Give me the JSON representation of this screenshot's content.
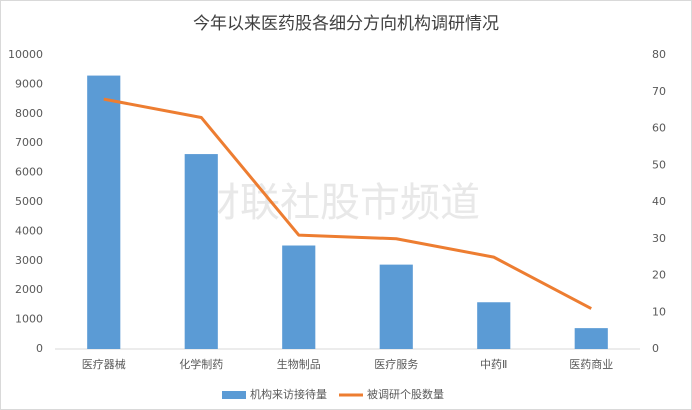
{
  "chart_data": {
    "type": "bar",
    "title": "今年以来医药股各细分方向机构调研情况",
    "watermark": "财联社股市频道",
    "categories": [
      "医疗器械",
      "化学制药",
      "生物制品",
      "医疗服务",
      "中药Ⅱ",
      "医药商业"
    ],
    "series": [
      {
        "name": "机构来访接待量",
        "type": "bar",
        "color": "#5b9bd5",
        "values": [
          9300,
          6630,
          3520,
          2870,
          1590,
          710
        ]
      },
      {
        "name": "被调研个股数量",
        "type": "line",
        "axis": "y2",
        "color": "#ed7d31",
        "values": [
          68,
          63,
          31,
          30,
          25,
          11
        ]
      }
    ],
    "ylim": [
      0,
      10000
    ],
    "yticks": [
      0,
      1000,
      2000,
      3000,
      4000,
      5000,
      6000,
      7000,
      8000,
      9000,
      10000
    ],
    "y2lim": [
      0,
      80
    ],
    "y2ticks": [
      0,
      10,
      20,
      30,
      40,
      50,
      60,
      70,
      80
    ],
    "legend": "bottom"
  }
}
